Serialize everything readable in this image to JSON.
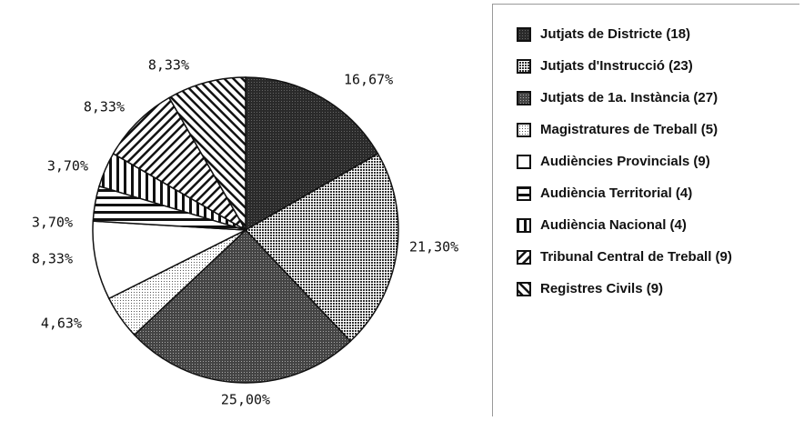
{
  "chart_data": {
    "type": "pie",
    "categories": [
      "Jutjats de Districte (18)",
      "Jutjats d'Instrucció (23)",
      "Jutjats de 1a. Instància (27)",
      "Magistratures de Treball (5)",
      "Audiències Provincials (9)",
      "Audiència Territorial (4)",
      "Audiència Nacional (4)",
      "Tribunal Central de Treball (9)",
      "Registres Civils (9)"
    ],
    "values": [
      16.67,
      21.3,
      25.0,
      4.63,
      8.33,
      3.7,
      3.7,
      8.33,
      8.33
    ],
    "value_labels": [
      "16,67%",
      "21,30%",
      "25,00%",
      "4,63%",
      "8,33%",
      "3,70%",
      "3,70%",
      "8,33%",
      "8,33%"
    ],
    "patterns": [
      "solid",
      "crosshatch",
      "stipple",
      "dots",
      "none",
      "horizontal",
      "vertical",
      "diagonal-down",
      "diagonal-up"
    ],
    "legend": "right"
  }
}
